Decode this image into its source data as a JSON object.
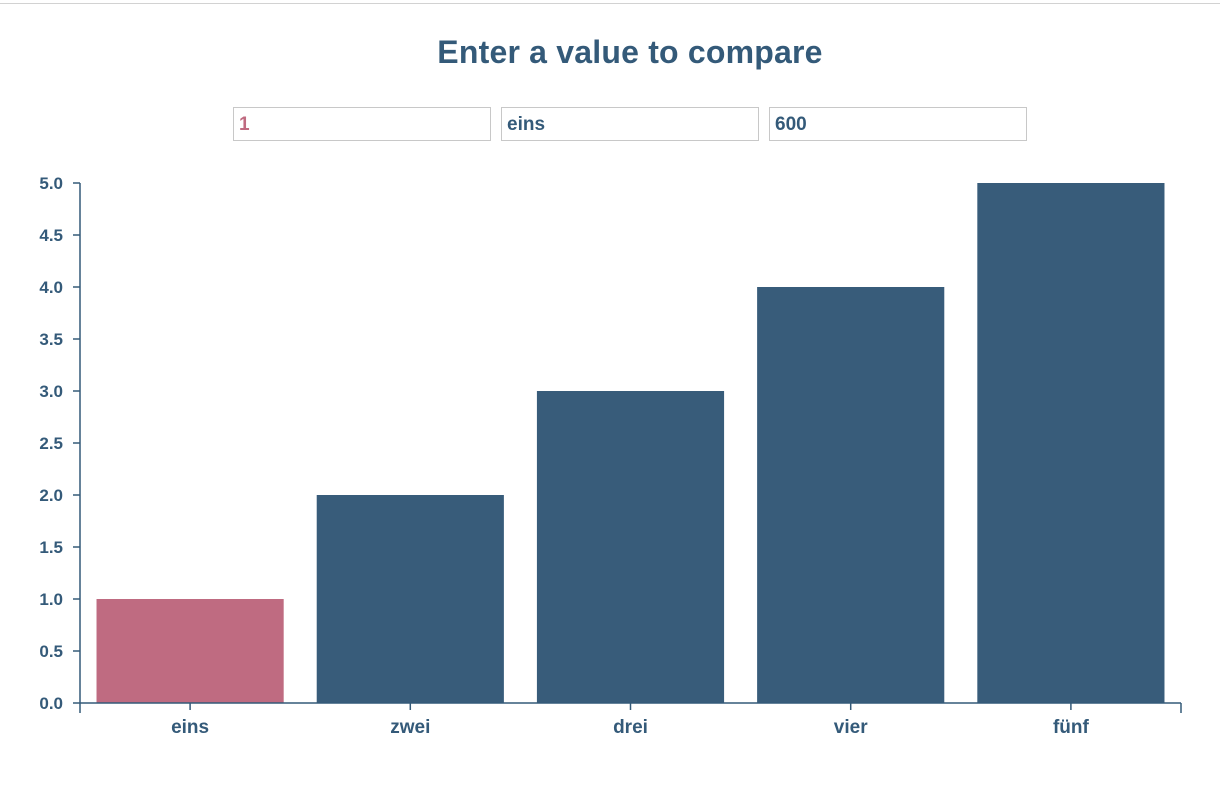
{
  "header": {
    "title": "Enter a value to compare"
  },
  "inputs": {
    "value": "1",
    "label": "eins",
    "width": "600"
  },
  "colors": {
    "bar": "#385c7a",
    "highlight": "#bf6b81",
    "axis": "#345a79"
  },
  "chart_data": {
    "type": "bar",
    "categories": [
      "eins",
      "zwei",
      "drei",
      "vier",
      "fünf"
    ],
    "values": [
      1,
      2,
      3,
      4,
      5
    ],
    "highlighted_category": "eins",
    "ylim": [
      0,
      5
    ],
    "yticks": [
      "0.0",
      "0.5",
      "1.0",
      "1.5",
      "2.0",
      "2.5",
      "3.0",
      "3.5",
      "4.0",
      "4.5",
      "5.0"
    ],
    "title": "",
    "xlabel": "",
    "ylabel": "",
    "grid": false,
    "legend": "none"
  }
}
